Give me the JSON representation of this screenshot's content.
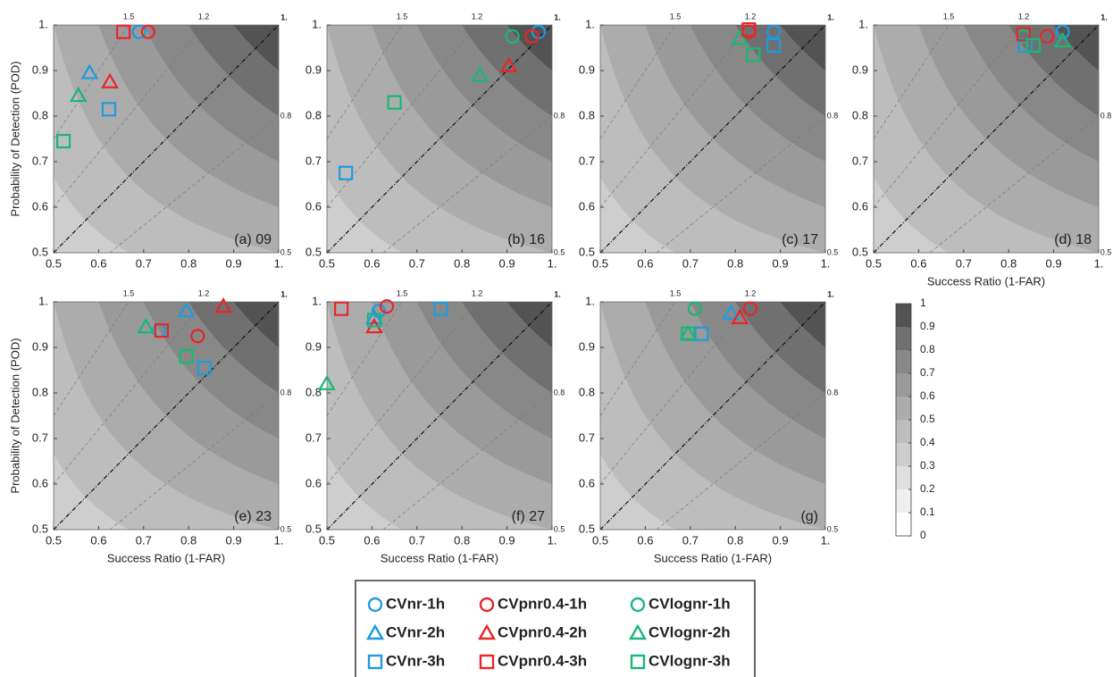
{
  "chart_data": [
    {
      "type": "scatter",
      "label": "(a) 09",
      "ylabel": "Probability of Detection (POD)",
      "xlim": [
        0.5,
        1
      ],
      "ylim": [
        0.5,
        1
      ],
      "xticks": [
        0.5,
        0.6,
        0.7,
        0.8,
        0.9,
        {
          "value": 1,
          "label": "1."
        }
      ],
      "yticks": [
        0.5,
        0.6,
        0.7,
        0.8,
        0.9,
        {
          "value": 1,
          "label": "1."
        }
      ],
      "bias_lines": [
        1.5,
        1.2,
        {
          "value": 1,
          "label": "1."
        },
        0.8,
        0.5
      ],
      "x": [
        0.69,
        0.71,
        null,
        0.58,
        0.625,
        0.555,
        0.623,
        0.655,
        0.522
      ],
      "y": [
        0.985,
        0.985,
        null,
        0.895,
        0.875,
        0.845,
        0.815,
        0.985,
        0.745
      ]
    },
    {
      "type": "scatter",
      "label": "(b) 16",
      "xlim": [
        0.5,
        1
      ],
      "ylim": [
        0.5,
        1
      ],
      "xticks": [
        0.5,
        0.6,
        0.7,
        0.8,
        0.9,
        {
          "value": 1,
          "label": "1."
        }
      ],
      "yticks": [
        0.5,
        0.6,
        0.7,
        0.8,
        0.9,
        {
          "value": 1,
          "label": "1."
        }
      ],
      "bias_lines": [
        1.5,
        1.2,
        {
          "value": 1,
          "label": "1."
        },
        0.8,
        0.5
      ],
      "x": [
        0.97,
        0.955,
        0.912,
        0.84,
        0.904,
        0.84,
        0.542,
        null,
        0.65
      ],
      "y": [
        0.985,
        0.975,
        0.975,
        0.89,
        0.91,
        0.89,
        0.675,
        null,
        0.83
      ]
    },
    {
      "type": "scatter",
      "label": "(c) 17",
      "xlim": [
        0.5,
        1
      ],
      "ylim": [
        0.5,
        1
      ],
      "xticks": [
        0.5,
        0.6,
        0.7,
        0.8,
        0.9,
        {
          "value": 1,
          "label": "1."
        }
      ],
      "yticks": [
        0.5,
        0.6,
        0.7,
        0.8,
        0.9,
        {
          "value": 1,
          "label": "1."
        }
      ],
      "bias_lines": [
        1.5,
        1.2,
        {
          "value": 1,
          "label": "1."
        },
        0.8,
        0.5
      ],
      "x": [
        0.885,
        0.83,
        null,
        null,
        null,
        0.81,
        0.885,
        0.83,
        0.84
      ],
      "y": [
        0.985,
        0.985,
        null,
        null,
        null,
        0.97,
        0.955,
        0.99,
        0.935
      ]
    },
    {
      "type": "scatter",
      "label": "(d) 18",
      "xlabel": "Success Ratio (1-FAR)",
      "xlim": [
        0.5,
        1
      ],
      "ylim": [
        0.5,
        1
      ],
      "xticks": [
        0.5,
        0.6,
        0.7,
        0.8,
        0.9,
        {
          "value": 1,
          "label": "1."
        }
      ],
      "yticks": [
        0.5,
        0.6,
        0.7,
        0.8,
        0.9,
        {
          "value": 1,
          "label": "1."
        }
      ],
      "bias_lines": [
        1.5,
        1.2,
        {
          "value": 1,
          "label": "1."
        },
        0.8,
        0.5
      ],
      "x": [
        0.92,
        0.885,
        0.833,
        null,
        null,
        0.92,
        0.837,
        0.833,
        0.855
      ],
      "y": [
        0.985,
        0.975,
        0.975,
        null,
        null,
        0.965,
        0.955,
        0.98,
        0.955
      ]
    },
    {
      "type": "scatter",
      "label": "(e) 23",
      "xlabel": "Success Ratio (1-FAR)",
      "ylabel": "Probability of Detection (POD)",
      "xlim": [
        0.5,
        1
      ],
      "ylim": [
        0.5,
        1
      ],
      "xticks": [
        0.5,
        0.6,
        0.7,
        0.8,
        0.9,
        {
          "value": 1,
          "label": "1."
        }
      ],
      "yticks": [
        0.5,
        0.6,
        0.7,
        0.8,
        0.9,
        {
          "value": 1,
          "label": "1."
        }
      ],
      "bias_lines": [
        1.5,
        1.2,
        {
          "value": 1,
          "label": "1."
        },
        0.8,
        0.5
      ],
      "x": [
        0.735,
        0.82,
        null,
        0.795,
        0.877,
        0.705,
        0.835,
        0.74,
        0.795
      ],
      "y": [
        0.937,
        0.925,
        null,
        0.98,
        0.99,
        0.945,
        0.855,
        0.937,
        0.88
      ]
    },
    {
      "type": "scatter",
      "label": "(f) 27",
      "xlabel": "Success Ratio (1-FAR)",
      "xlim": [
        0.5,
        1
      ],
      "ylim": [
        0.5,
        1
      ],
      "xticks": [
        0.5,
        0.6,
        0.7,
        0.8,
        0.9,
        {
          "value": 1,
          "label": "1."
        }
      ],
      "yticks": [
        0.5,
        0.6,
        0.7,
        0.8,
        0.9,
        {
          "value": 1,
          "label": "1."
        }
      ],
      "bias_lines": [
        1.5,
        1.2,
        {
          "value": 1,
          "label": "1."
        },
        0.8,
        0.5
      ],
      "x": [
        0.615,
        0.633,
        null,
        0.605,
        0.605,
        0.5,
        0.753,
        0.532,
        0.605
      ],
      "y": [
        0.98,
        0.99,
        null,
        0.965,
        0.945,
        0.82,
        0.985,
        0.985,
        0.96
      ]
    },
    {
      "type": "scatter",
      "label": "(g)",
      "xlabel": "Success Ratio (1-FAR)",
      "xlim": [
        0.5,
        1
      ],
      "ylim": [
        0.5,
        1
      ],
      "xticks": [
        0.5,
        0.6,
        0.7,
        0.8,
        0.9,
        {
          "value": 1,
          "label": "1."
        }
      ],
      "yticks": [
        0.5,
        0.6,
        0.7,
        0.8,
        0.9,
        {
          "value": 1,
          "label": "1."
        }
      ],
      "bias_lines": [
        1.5,
        1.2,
        {
          "value": 1,
          "label": "1."
        },
        0.8,
        0.5
      ],
      "x": [
        null,
        0.833,
        0.71,
        0.79,
        0.81,
        0.695,
        0.725,
        null,
        0.695
      ],
      "y": [
        null,
        0.985,
        0.985,
        0.975,
        0.965,
        0.93,
        0.93,
        null,
        0.93
      ]
    }
  ],
  "legend": [
    {
      "name": "CVnr-1h",
      "color": "#1e9be0",
      "marker": "circle"
    },
    {
      "name": "CVpnr0.4-1h",
      "color": "#e8262a",
      "marker": "circle"
    },
    {
      "name": "CVlognr-1h",
      "color": "#18b878",
      "marker": "circle"
    },
    {
      "name": "CVnr-2h",
      "color": "#1e9be0",
      "marker": "triangle"
    },
    {
      "name": "CVpnr0.4-2h",
      "color": "#e8262a",
      "marker": "triangle"
    },
    {
      "name": "CVlognr-2h",
      "color": "#18b878",
      "marker": "triangle"
    },
    {
      "name": "CVnr-3h",
      "color": "#1e9be0",
      "marker": "square"
    },
    {
      "name": "CVpnr0.4-3h",
      "color": "#e8262a",
      "marker": "square"
    },
    {
      "name": "CVlognr-3h",
      "color": "#18b878",
      "marker": "square"
    }
  ],
  "colorbar": {
    "ticks": [
      0,
      0.1,
      0.2,
      0.3,
      0.4,
      0.5,
      0.6,
      0.7,
      0.8,
      0.9,
      1
    ],
    "colors": [
      "#ffffff",
      "#efefef",
      "#dfdfdf",
      "#cecece",
      "#bdbdbd",
      "#acacac",
      "#9a9a9a",
      "#888888",
      "#707070",
      "#535353"
    ]
  }
}
